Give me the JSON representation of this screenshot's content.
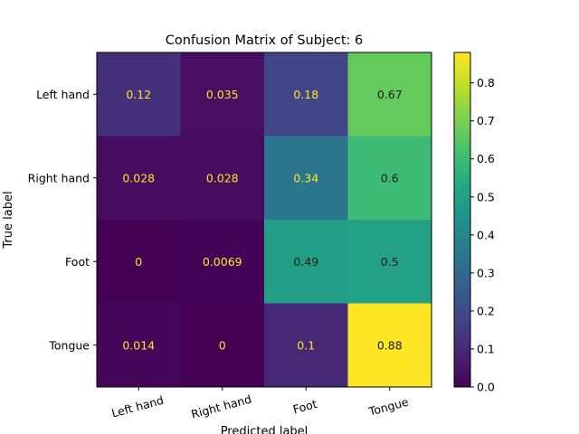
{
  "chart_data": {
    "type": "heatmap",
    "title": "Confusion Matrix of Subject: 6",
    "xlabel": "Predicted label",
    "ylabel": "True label",
    "x_categories": [
      "Left hand",
      "Right hand",
      "Foot",
      "Tongue"
    ],
    "y_categories": [
      "Left hand",
      "Right hand",
      "Foot",
      "Tongue"
    ],
    "values": [
      [
        0.12,
        0.035,
        0.18,
        0.67
      ],
      [
        0.028,
        0.028,
        0.34,
        0.6
      ],
      [
        0,
        0.0069,
        0.49,
        0.5
      ],
      [
        0.014,
        0,
        0.1,
        0.88
      ]
    ],
    "colormap": "viridis",
    "colorbar": {
      "vmin": 0.0,
      "vmax": 0.88,
      "ticks": [
        "0.0",
        "0.1",
        "0.2",
        "0.3",
        "0.4",
        "0.5",
        "0.6",
        "0.7",
        "0.8"
      ]
    },
    "text_color_light": "#fde725",
    "text_color_dark": "#1a1a1a"
  }
}
